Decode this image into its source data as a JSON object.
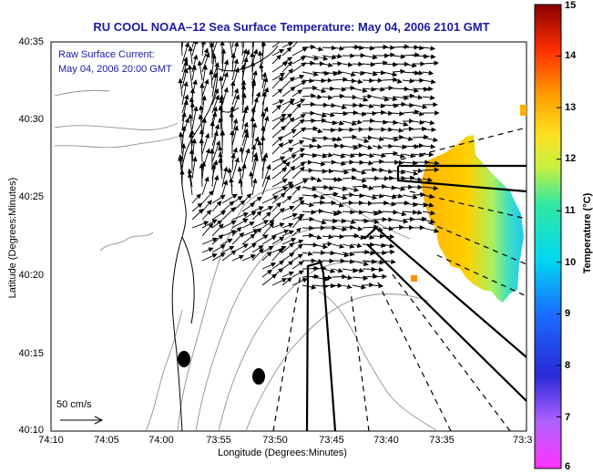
{
  "title": "RU COOL  NOAA–12  Sea Surface Temperature:  May 04, 2006 2101 GMT",
  "overlay": {
    "line1": "Raw Surface Current:",
    "line2": "May 04, 2006 20:00 GMT"
  },
  "axes": {
    "xlabel": "Longitude (Degrees:Minutes)",
    "ylabel": "Latitude (Degrees:Minutes)",
    "xticks": [
      "74:10",
      "74:05",
      "74:00",
      "73:55",
      "73:50",
      "73:45",
      "73:40",
      "73:35",
      "73:3"
    ],
    "yticks": [
      "40:35",
      "40:30",
      "40:25",
      "40:20",
      "40:15",
      "40:10"
    ]
  },
  "scale": {
    "label": "50 cm/s"
  },
  "colorbar": {
    "label": "Temperature (°C)",
    "ticks": [
      "15",
      "14",
      "13",
      "12",
      "11",
      "10",
      "9",
      "8",
      "7",
      "6"
    ],
    "range": [
      6,
      15
    ]
  },
  "colors": {
    "title": "#1a1aa8",
    "overlay_text": "#1a1aa8",
    "arrows": "#000000",
    "coastline": "#000000",
    "bathymetry": "#909090"
  }
}
